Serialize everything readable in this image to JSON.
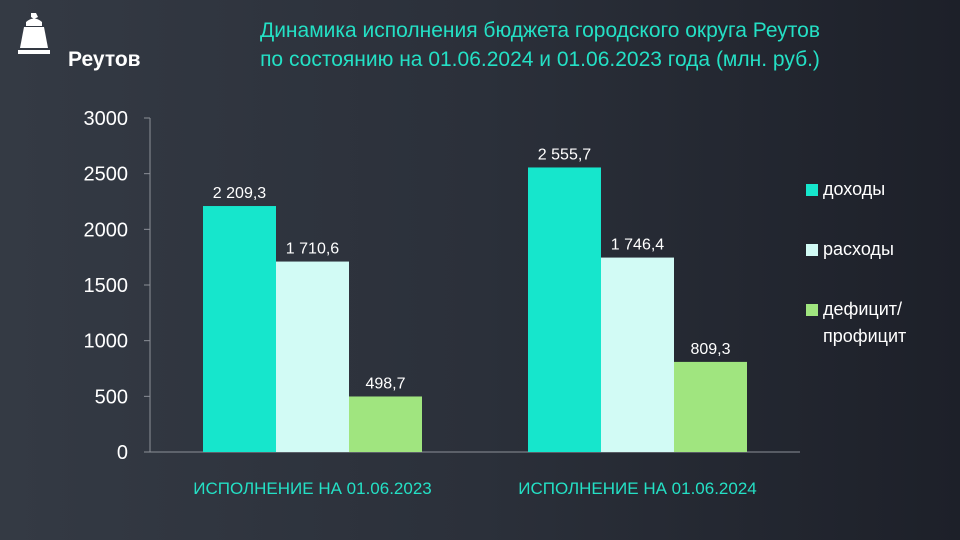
{
  "logo": {
    "name": "Реутов",
    "icon": "city-emblem-icon"
  },
  "title": {
    "line1": "Динамика исполнения бюджета городского округа Реутов",
    "line2": "по состоянию на 01.06.2024 и 01.06.2023 года (млн. руб.)"
  },
  "chart_data": {
    "type": "bar",
    "categories": [
      "ИСПОЛНЕНИЕ НА 01.06.2023",
      "ИСПОЛНЕНИЕ НА 01.06.2024"
    ],
    "series": [
      {
        "name": "доходы",
        "color": "#16e6cc",
        "values": [
          2209.3,
          2555.7
        ],
        "labels": [
          "2 209,3",
          "2 555,7"
        ]
      },
      {
        "name": "расходы",
        "color": "#d2fbf5",
        "values": [
          1710.6,
          1746.4
        ],
        "labels": [
          "1 710,6",
          "1 746,4"
        ]
      },
      {
        "name": "дефицит/\nпрофицит",
        "color": "#a0e57f",
        "values": [
          498.7,
          809.3
        ],
        "labels": [
          "498,7",
          "809,3"
        ]
      }
    ],
    "ylim": [
      0,
      3000
    ],
    "yticks": [
      "0",
      "500",
      "1000",
      "1500",
      "2000",
      "2500",
      "3000"
    ],
    "grid": false,
    "legend": "right"
  }
}
